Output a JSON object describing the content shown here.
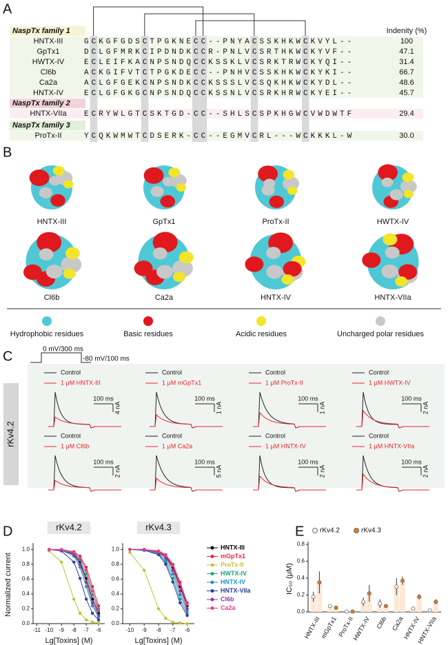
{
  "panel_labels": [
    "A",
    "B",
    "C",
    "D",
    "E"
  ],
  "alignment": {
    "identity_header": "Indenity (%)",
    "groups": [
      {
        "family": "NaspTx family 1",
        "rows": [
          {
            "name": "HNTX-III",
            "sequence": "GCKGFGDSCTPGKNECC--PNYACSSKHKWCKVYL--",
            "identity": "100"
          },
          {
            "name": "GpTx1",
            "sequence": "DCLGFMRKCIPDNDKCCR-PNLVCSRTHKWCKYVF--",
            "identity": "47.1"
          },
          {
            "name": "HWTX-IV",
            "sequence": "ECLEIFKACNPSNDQCCKSSKLVCSRKTRWCKYQI--",
            "identity": "31.4"
          },
          {
            "name": "Cl6b",
            "sequence": "ACKGIFVTCTPGKDECC--PNHVCSSKHKWCKYKI--",
            "identity": "66.7"
          },
          {
            "name": "Ca2a",
            "sequence": "ACLGFGEKCNPSNDKCCKSSSLVCSQKHKWCKYDL--",
            "identity": "48.6"
          },
          {
            "name": "HNTX-IV",
            "sequence": "ECLGFGKGCNPSNDQCCKSSNLVCSRKHRWCKYEI--",
            "identity": "45.7"
          }
        ]
      },
      {
        "family": "NaspTx family 2",
        "rows": [
          {
            "name": "HNTX-VIIa",
            "sequence": "ECRYWLGTCSKTGD-CC--SHLSCSPKHGWCVWDWTF",
            "identity": "29.4"
          }
        ]
      },
      {
        "family": "NaspTx family 3",
        "rows": [
          {
            "name": "ProTx-II",
            "sequence": "YCQKWMWTCDSERK-CC--EGMVCRL---WCKKKL-W",
            "identity": "30.0"
          }
        ]
      }
    ]
  },
  "structures": {
    "labels": [
      "HNTX-III",
      "GpTx1",
      "ProTx-II",
      "HWTX-IV",
      "Cl6b",
      "Ca2a",
      "HNTX-IV",
      "HNTX-VIIa"
    ],
    "legend": [
      "Hydrophobic residues",
      "Basic residues",
      "Acidic residues",
      "Uncharged polar residues"
    ]
  },
  "currents": {
    "protocol_step": "0 mV/300 ms",
    "protocol_hold": "-80 mV/100 ms",
    "cell": "rKv4.2",
    "traces": [
      {
        "control": "Control",
        "toxin": "1 μM HNTX-III",
        "time_scale": "100 ms",
        "current_scale": "4 nA"
      },
      {
        "control": "Control",
        "toxin": "1 μM mGpTx1",
        "time_scale": "100 ms",
        "current_scale": "1 nA"
      },
      {
        "control": "Control",
        "toxin": "1 μM ProTx-II",
        "time_scale": "100 ms",
        "current_scale": "1 nA"
      },
      {
        "control": "Control",
        "toxin": "1 μM HWTX-IV",
        "time_scale": "100 ms",
        "current_scale": "2 nA"
      },
      {
        "control": "Control",
        "toxin": "1 μM Cl6b",
        "time_scale": "100 ms",
        "current_scale": "2 nA"
      },
      {
        "control": "Control",
        "toxin": "1 μM Ca2a",
        "time_scale": "100 ms",
        "current_scale": "5 nA"
      },
      {
        "control": "Control",
        "toxin": "1 μM HNTX-IV",
        "time_scale": "100 ms",
        "current_scale": "2 nA"
      },
      {
        "control": "Control",
        "toxin": "1 μM HNTX-VIIa",
        "time_scale": "100 ms",
        "current_scale": "2 nA"
      }
    ]
  },
  "chart_data": [
    {
      "type": "line",
      "title": "rKv4.2",
      "x_label": "Lg[Toxins] (M)",
      "y_label": "Normalized current",
      "x": [
        -10,
        -9,
        -8,
        -7.5,
        -7,
        -6.5,
        -6
      ],
      "xlim": [
        -11.3,
        -5.5
      ],
      "xticks": [
        -11,
        -10,
        -9,
        -8,
        -7,
        -6
      ],
      "ylim": [
        0,
        1.05
      ],
      "yticks": [
        {
          "value": 0,
          "label": "0.0"
        },
        0.2,
        0.4,
        0.6,
        0.8,
        {
          "value": 1,
          "label": "1.0"
        }
      ],
      "series": [
        {
          "name": "HNTX-III",
          "color": "#000000",
          "values": [
            1.0,
            0.99,
            0.94,
            0.83,
            0.61,
            0.33,
            0.14
          ]
        },
        {
          "name": "mGpTx1",
          "color": "#e8263a",
          "values": [
            1.0,
            1.0,
            0.97,
            0.91,
            0.76,
            0.5,
            0.24
          ]
        },
        {
          "name": "ProTx-II",
          "color": "#c2c22e",
          "values": [
            0.98,
            0.83,
            0.33,
            0.14,
            0.05,
            0.02,
            0.01
          ]
        },
        {
          "name": "HWTX-IV",
          "color": "#1aa37a",
          "values": [
            1.0,
            0.99,
            0.95,
            0.86,
            0.67,
            0.39,
            0.17
          ]
        },
        {
          "name": "HNTX-IV",
          "color": "#1e90c8",
          "values": [
            1.0,
            0.99,
            0.91,
            0.76,
            0.5,
            0.24,
            0.09
          ]
        },
        {
          "name": "HNTX-VIIa",
          "color": "#2b3aa0",
          "values": [
            1.0,
            0.98,
            0.83,
            0.61,
            0.33,
            0.14,
            0.05
          ]
        },
        {
          "name": "Cl6b",
          "color": "#9b2fa8",
          "values": [
            1.0,
            0.99,
            0.93,
            0.8,
            0.56,
            0.28,
            0.11
          ]
        },
        {
          "name": "Ca2a",
          "color": "#e83e8c",
          "values": [
            1.0,
            1.0,
            0.96,
            0.89,
            0.72,
            0.44,
            0.2
          ]
        }
      ]
    },
    {
      "type": "line",
      "title": "rKv4.3",
      "x_label": "Lg[Toxins] (M)",
      "x": [
        -10,
        -9,
        -8,
        -7.5,
        -7,
        -6.5,
        -6
      ],
      "xlim": [
        -10.5,
        -5.5
      ],
      "xticks": [
        -10,
        -9,
        -8,
        -7,
        -6
      ],
      "ylim": [
        0,
        1.05
      ],
      "yticks": [
        {
          "value": 0,
          "label": "0.0"
        },
        0.2,
        0.4,
        0.6,
        0.8,
        {
          "value": 1,
          "label": "1.0"
        }
      ],
      "series": [
        {
          "values": [
            1.0,
            1.0,
            0.97,
            0.91,
            0.76,
            0.5,
            0.24
          ]
        },
        {
          "values": [
            1.0,
            1.0,
            0.98,
            0.93,
            0.8,
            0.56,
            0.28
          ]
        },
        {
          "values": [
            0.96,
            0.72,
            0.2,
            0.07,
            0.02,
            0.01,
            0.0
          ]
        },
        {
          "values": [
            1.0,
            0.99,
            0.94,
            0.83,
            0.61,
            0.33,
            0.14
          ]
        },
        {
          "values": [
            1.0,
            0.99,
            0.95,
            0.86,
            0.67,
            0.39,
            0.17
          ]
        },
        {
          "values": [
            1.0,
            0.99,
            0.93,
            0.8,
            0.56,
            0.28,
            0.11
          ]
        },
        {
          "values": [
            1.0,
            1.0,
            0.96,
            0.89,
            0.72,
            0.44,
            0.2
          ]
        },
        {
          "values": [
            1.0,
            1.0,
            0.97,
            0.92,
            0.78,
            0.53,
            0.26
          ]
        }
      ]
    },
    {
      "type": "bar",
      "y_label": "IC₅₀ (μM)",
      "categories": [
        "HNTX-III",
        "mGpTx1",
        "ProTx-II",
        "HWTX-IV",
        "Cl6b",
        "Ca2a",
        "HNTX-IV",
        "HNTX-VIIa"
      ],
      "ylim": [
        0,
        0.8
      ],
      "yticks": [
        {
          "value": 0,
          "label": "0.0"
        },
        0.2,
        0.4,
        0.6,
        0.8
      ],
      "series": [
        {
          "name": "rKv4.2",
          "color": "#ffffff",
          "values": [
            0.18,
            0.07,
            0.005,
            0.12,
            0.1,
            0.3,
            0.04,
            0.02
          ],
          "errors": [
            0.06,
            0.02,
            0.003,
            0.05,
            0.05,
            0.1,
            0.01,
            0.01
          ]
        },
        {
          "name": "rKv4.3",
          "color": "#e07b2a",
          "values": [
            0.35,
            0.05,
            0.005,
            0.22,
            0.07,
            0.37,
            0.18,
            0.12
          ],
          "errors": [
            0.13,
            0.01,
            0.003,
            0.1,
            0.02,
            0.05,
            0.03,
            0.03
          ]
        }
      ]
    }
  ]
}
